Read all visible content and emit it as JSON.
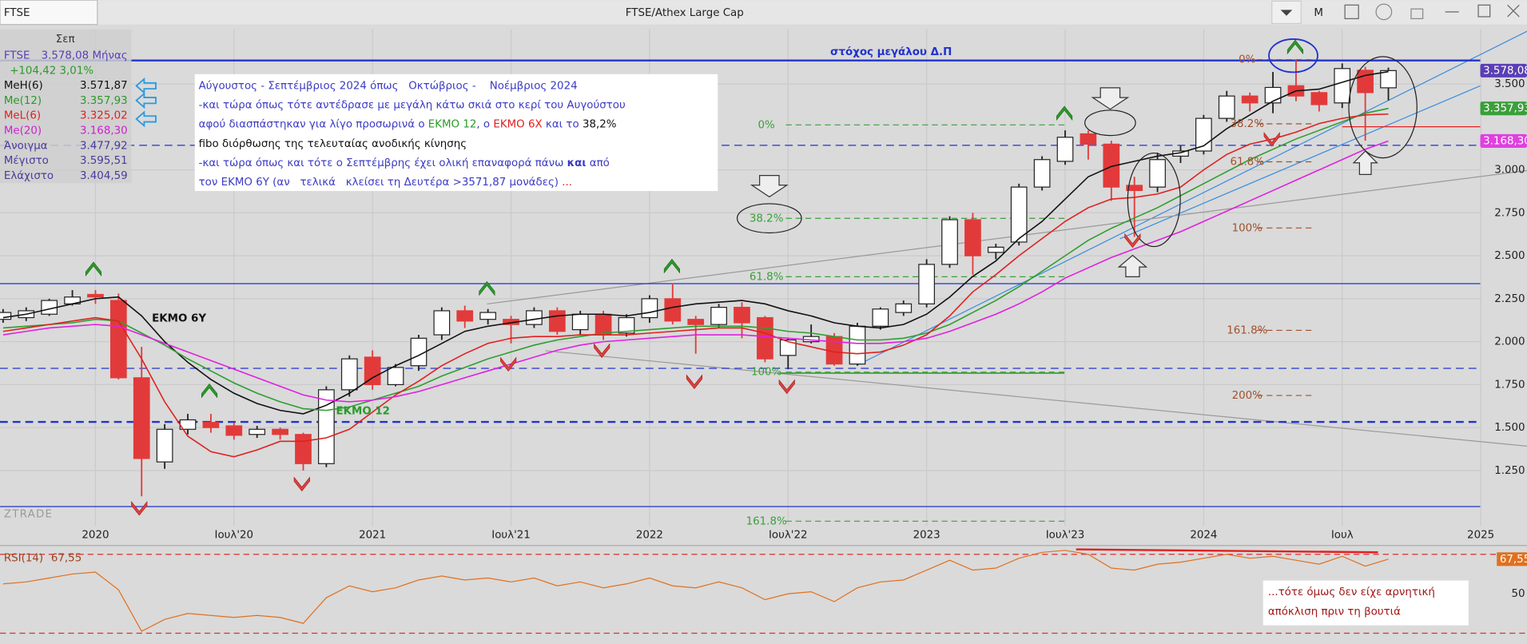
{
  "header": {
    "symbol": "FTSE",
    "title": "FTSE/Athex Large Cap",
    "mode": "M"
  },
  "info_panel": {
    "month": "Σεπ",
    "rows": [
      {
        "cells": [
          "FTSE",
          "3.578,08 Μήνας"
        ],
        "color": "#5a3fb5"
      },
      {
        "cells": [
          "+104,42 3,01%"
        ],
        "color": "#2a9a2a"
      },
      {
        "cells": [
          "MeH(6)",
          "3.571,87"
        ],
        "color": "#111111"
      },
      {
        "cells": [
          "Me(12)",
          "3.357,93"
        ],
        "color": "#2a9a2a"
      },
      {
        "cells": [
          "MeL(6)",
          "3.325,02"
        ],
        "color": "#e02020"
      },
      {
        "cells": [
          "Me(20)",
          "3.168,30"
        ],
        "color": "#d020d0"
      },
      {
        "cells": [
          "Άνοιγμα",
          "3.477,92"
        ],
        "color": "#4b3a9a"
      },
      {
        "cells": [
          "Μέγιστο",
          "3.595,51"
        ],
        "color": "#4b3a9a"
      },
      {
        "cells": [
          "Ελάχιστο",
          "3.404,59"
        ],
        "color": "#4b3a9a"
      }
    ]
  },
  "chart_data": [
    {
      "type": "candlestick",
      "annotations": [
        "στόχος μεγάλου Δ.Π",
        "ΕΚΜΟ 6Υ",
        "ΕΚΜΟ 12",
        "ZTRADE"
      ],
      "note": [
        [
          {
            "text": "Αύγουστος - Σεπτέμβριος 2024 όπως   Οκτώβριος -    Νοέμβριος 2024",
            "color": "#3b3bc4"
          }
        ],
        [
          {
            "text": "-και τώρα όπως τότε αντέδρασε με μεγάλη κάτω σκιά στο κερί του Αυγούστου",
            "color": "#3b3bc4"
          }
        ],
        [
          {
            "text": "αφού διασπάστηκαν για λίγο προσωρινά ο ",
            "color": "#3b3bc4"
          },
          {
            "text": "ΕΚΜΟ 12",
            "color": "#2a9a2a"
          },
          {
            "text": ", ο ",
            "color": "#3b3bc4"
          },
          {
            "text": "ΕΚΜΟ 6Χ",
            "color": "#e02020"
          },
          {
            "text": " και το ",
            "color": "#3b3bc4"
          },
          {
            "text": "38,2%",
            "color": "#111111"
          }
        ],
        [
          {
            "text": "fibo διόρθωσης της τελευταίας ανοδικής κίνησης",
            "color": "#111111"
          }
        ],
        [
          {
            "text": "-και τώρα όπως και τότε ο Σεπτέμβρης έχει ολική επαναφορά πάνω ",
            "color": "#3b3bc4"
          },
          {
            "text": "και",
            "color": "#3b3bc4",
            "bold": true
          },
          {
            "text": " από",
            "color": "#3b3bc4"
          }
        ],
        [
          {
            "text": "τον ΕΚΜΟ 6Υ (αν   τελικά   κλείσει τη Δευτέρα >3571,87 μονάδες) ",
            "color": "#3b3bc4"
          },
          {
            "text": "...",
            "color": "#e02020"
          }
        ]
      ],
      "x": [
        2019.6667,
        2019.75,
        2019.8333,
        2019.9167,
        2020,
        2020.0833,
        2020.1667,
        2020.25,
        2020.3333,
        2020.4167,
        2020.5,
        2020.5833,
        2020.6667,
        2020.75,
        2020.8333,
        2020.9167,
        2021,
        2021.0833,
        2021.1667,
        2021.25,
        2021.3333,
        2021.4167,
        2021.5,
        2021.5833,
        2021.6667,
        2021.75,
        2021.8333,
        2021.9167,
        2022,
        2022.0833,
        2022.1667,
        2022.25,
        2022.3333,
        2022.4167,
        2022.5,
        2022.5833,
        2022.6667,
        2022.75,
        2022.8333,
        2022.9167,
        2023,
        2023.0833,
        2023.1667,
        2023.25,
        2023.3333,
        2023.4167,
        2023.5,
        2023.5833,
        2023.6667,
        2023.75,
        2023.8333,
        2023.9167,
        2024,
        2024.0833,
        2024.1667,
        2024.25,
        2024.3333,
        2024.4167,
        2024.5,
        2024.5833,
        2024.6667
      ],
      "open": [
        2130,
        2140,
        2160,
        2220,
        2275,
        2240,
        1790,
        1300,
        1490,
        1530,
        1510,
        1460,
        1490,
        1460,
        1290,
        1720,
        1910,
        1750,
        1860,
        2040,
        2180,
        2130,
        2130,
        2100,
        2180,
        2070,
        2160,
        2050,
        2140,
        2250,
        2130,
        2100,
        2200,
        2140,
        1920,
        2000,
        2030,
        1870,
        2090,
        2170,
        2220,
        2450,
        2710,
        2520,
        2580,
        2900,
        3050,
        3210,
        3150,
        2910,
        2900,
        3080,
        3110,
        3300,
        3430,
        3390,
        3490,
        3450,
        3390,
        3580,
        3477.92
      ],
      "high": [
        2190,
        2200,
        2250,
        2300,
        2300,
        2280,
        1970,
        1520,
        1580,
        1580,
        1530,
        1510,
        1500,
        1470,
        1740,
        1920,
        1950,
        1870,
        2040,
        2200,
        2210,
        2190,
        2150,
        2200,
        2200,
        2180,
        2180,
        2160,
        2270,
        2340,
        2150,
        2220,
        2230,
        2150,
        2020,
        2100,
        2050,
        2110,
        2200,
        2240,
        2480,
        2730,
        2750,
        2570,
        2920,
        3080,
        3230,
        3230,
        3170,
        2960,
        3100,
        3140,
        3320,
        3460,
        3450,
        3570,
        3640,
        3460,
        3620,
        3600,
        3595.51
      ],
      "low": [
        2110,
        2120,
        2150,
        2210,
        2220,
        1780,
        1100,
        1260,
        1460,
        1470,
        1430,
        1440,
        1430,
        1250,
        1270,
        1680,
        1720,
        1740,
        1830,
        2010,
        2080,
        2100,
        1990,
        2080,
        2040,
        2040,
        2010,
        2030,
        2110,
        2100,
        1930,
        2080,
        2020,
        1880,
        1840,
        1990,
        1860,
        1860,
        2070,
        2150,
        2200,
        2430,
        2390,
        2480,
        2560,
        2880,
        3030,
        3060,
        2820,
        2610,
        2870,
        3040,
        3090,
        3280,
        3340,
        3330,
        3400,
        3340,
        3360,
        3170,
        3404.59
      ],
      "close": [
        2170,
        2180,
        2240,
        2260,
        2260,
        1790,
        1320,
        1490,
        1545,
        1500,
        1455,
        1490,
        1460,
        1290,
        1720,
        1900,
        1750,
        1850,
        2020,
        2180,
        2120,
        2170,
        2100,
        2180,
        2060,
        2160,
        2040,
        2140,
        2250,
        2120,
        2100,
        2200,
        2110,
        1900,
        2010,
        2030,
        1870,
        2090,
        2190,
        2220,
        2450,
        2710,
        2500,
        2550,
        2900,
        3060,
        3190,
        3150,
        2900,
        2880,
        3060,
        3110,
        3300,
        3430,
        3390,
        3480,
        3430,
        3380,
        3590,
        3450,
        3578.08
      ],
      "up_color": "#ffffff",
      "down_color": "#e23a3a",
      "series": [
        {
          "name": "MeH(6)",
          "color": "#111111",
          "values": [
            2140,
            2160,
            2190,
            2220,
            2250,
            2260,
            2150,
            2000,
            1880,
            1780,
            1700,
            1640,
            1600,
            1580,
            1630,
            1700,
            1790,
            1860,
            1920,
            1990,
            2060,
            2090,
            2110,
            2130,
            2150,
            2160,
            2160,
            2150,
            2170,
            2200,
            2220,
            2230,
            2240,
            2220,
            2180,
            2150,
            2110,
            2090,
            2080,
            2100,
            2160,
            2260,
            2380,
            2470,
            2600,
            2700,
            2830,
            2960,
            3020,
            3050,
            3080,
            3100,
            3140,
            3240,
            3320,
            3400,
            3460,
            3470,
            3510,
            3550,
            3571.87
          ]
        },
        {
          "name": "Me(12)",
          "color": "#2e9e2e",
          "values": [
            2080,
            2090,
            2100,
            2110,
            2130,
            2120,
            2050,
            1980,
            1900,
            1830,
            1760,
            1700,
            1650,
            1610,
            1600,
            1620,
            1660,
            1700,
            1740,
            1800,
            1850,
            1900,
            1940,
            1980,
            2010,
            2030,
            2050,
            2060,
            2070,
            2080,
            2090,
            2090,
            2090,
            2080,
            2060,
            2050,
            2030,
            2010,
            2010,
            2020,
            2050,
            2100,
            2170,
            2240,
            2320,
            2410,
            2500,
            2590,
            2660,
            2720,
            2780,
            2850,
            2920,
            2990,
            3060,
            3120,
            3180,
            3230,
            3280,
            3330,
            3357.93
          ]
        },
        {
          "name": "MeL(6)",
          "color": "#e02020",
          "values": [
            2060,
            2080,
            2100,
            2120,
            2140,
            2120,
            1900,
            1650,
            1450,
            1360,
            1330,
            1370,
            1420,
            1420,
            1440,
            1490,
            1590,
            1690,
            1770,
            1860,
            1930,
            1990,
            2020,
            2030,
            2030,
            2040,
            2040,
            2040,
            2050,
            2060,
            2070,
            2080,
            2080,
            2050,
            2000,
            1970,
            1940,
            1930,
            1940,
            1980,
            2040,
            2150,
            2290,
            2390,
            2500,
            2600,
            2700,
            2780,
            2830,
            2840,
            2860,
            2900,
            3000,
            3090,
            3150,
            3180,
            3220,
            3270,
            3300,
            3320,
            3325.02
          ]
        },
        {
          "name": "Me(20)",
          "color": "#e020e0",
          "values": [
            2040,
            2060,
            2080,
            2090,
            2100,
            2090,
            2040,
            1990,
            1940,
            1890,
            1840,
            1790,
            1740,
            1690,
            1660,
            1650,
            1660,
            1680,
            1710,
            1750,
            1790,
            1830,
            1870,
            1910,
            1950,
            1980,
            2000,
            2010,
            2020,
            2030,
            2040,
            2040,
            2040,
            2030,
            2020,
            2010,
            2000,
            1990,
            1990,
            2000,
            2020,
            2060,
            2110,
            2160,
            2220,
            2290,
            2370,
            2430,
            2490,
            2540,
            2590,
            2640,
            2700,
            2760,
            2820,
            2880,
            2940,
            3000,
            3060,
            3120,
            3168.3
          ]
        }
      ],
      "levels": [
        {
          "value": 3637,
          "color": "#2233cc",
          "dash": false,
          "width": 2
        },
        {
          "value": 3143,
          "color": "#2233cc",
          "dash": true,
          "width": 1
        },
        {
          "value": 2338,
          "color": "#2233cc",
          "dash": false,
          "width": 1
        },
        {
          "value": 1845,
          "color": "#2233cc",
          "dash": true,
          "width": 1
        },
        {
          "value": 1533,
          "color": "#2233cc",
          "dash": true,
          "width": 2
        },
        {
          "value": 1040,
          "color": "#2233cc",
          "dash": false,
          "width": 1
        },
        {
          "value": 3251,
          "color": "#e02020",
          "dash": false,
          "width": 1,
          "start": 2024.5
        }
      ],
      "fibs": [
        {
          "start": 2022.0,
          "end": 2023.5,
          "color": "#3aa03a",
          "levels": [
            {
              "value": 3262,
              "label": "0%"
            },
            {
              "value": 2718,
              "label": "38.2%"
            },
            {
              "value": 2378,
              "label": "61.8%"
            },
            {
              "value": 1823,
              "label": "100%"
            },
            {
              "value": 955,
              "label": "161.8%"
            }
          ]
        },
        {
          "start": 2023.7,
          "end": 2024.4,
          "color": "#a0522d",
          "levels": [
            {
              "value": 3642,
              "label": "0%"
            },
            {
              "value": 3268,
              "label": "38.2%"
            },
            {
              "value": 3047,
              "label": "61.8%"
            },
            {
              "value": 2662,
              "label": "100%"
            },
            {
              "value": 2066,
              "label": "161.8%"
            },
            {
              "value": 1687,
              "label": "200%"
            }
          ]
        }
      ],
      "price_tags": [
        {
          "value": 3578.08,
          "label": "3.578,08",
          "color": "#5a3fb5"
        },
        {
          "value": 3357.93,
          "label": "3.357,93",
          "color": "#3aa03a"
        },
        {
          "value": 3168.3,
          "label": "3.168,30",
          "color": "#e040e0"
        }
      ],
      "xlim": [
        2019.6555,
        2025.167
      ],
      "ylim": [
        927,
        3818
      ],
      "xticks": [
        {
          "value": 2020,
          "label": "2020"
        },
        {
          "value": 2020.5,
          "label": "Ιουλ'20"
        },
        {
          "value": 2021,
          "label": "2021"
        },
        {
          "value": 2021.5,
          "label": "Ιουλ'21"
        },
        {
          "value": 2022,
          "label": "2022"
        },
        {
          "value": 2022.5,
          "label": "Ιουλ'22"
        },
        {
          "value": 2023,
          "label": "2023"
        },
        {
          "value": 2023.5,
          "label": "Ιουλ'23"
        },
        {
          "value": 2024,
          "label": "2024"
        },
        {
          "value": 2024.5,
          "label": "Ιουλ"
        },
        {
          "value": 2025,
          "label": "2025"
        }
      ],
      "yticks": [
        {
          "value": 1250,
          "label": "1.250"
        },
        {
          "value": 1500,
          "label": "1.500"
        },
        {
          "value": 1750,
          "label": "1.750"
        },
        {
          "value": 2000,
          "label": "2.000"
        },
        {
          "value": 2250,
          "label": "2.250"
        },
        {
          "value": 2500,
          "label": "2.500"
        },
        {
          "value": 2750,
          "label": "2.750"
        },
        {
          "value": 3000,
          "label": "3.000"
        },
        {
          "value": 3500,
          "label": "3.500"
        }
      ],
      "grid": true
    },
    {
      "type": "line",
      "title": "RSI(14)",
      "color": "#e07020",
      "note": [
        "...τότε όμως δεν είχε αρνητική",
        "απόκλιση πριν τη βουτιά"
      ],
      "values": [
        55,
        56,
        58,
        60,
        61,
        52,
        31,
        37,
        40,
        39,
        38,
        39,
        38,
        35,
        48,
        54,
        51,
        53,
        57,
        59,
        57,
        58,
        56,
        58,
        54,
        56,
        53,
        55,
        58,
        54,
        53,
        56,
        53,
        47,
        50,
        51,
        46,
        53,
        56,
        57,
        62,
        67,
        62,
        63,
        68,
        71,
        72,
        70,
        63,
        62,
        65,
        66,
        68,
        70,
        68,
        69,
        67,
        65,
        69,
        64,
        67.55
      ],
      "value_labels": [
        null,
        null,
        null,
        null,
        null,
        null,
        null,
        null,
        null,
        null,
        null,
        null,
        null,
        null,
        null,
        null,
        null,
        null,
        null,
        null,
        null,
        null,
        null,
        null,
        null,
        null,
        null,
        null,
        null,
        null,
        null,
        null,
        null,
        null,
        null,
        null,
        null,
        null,
        null,
        null,
        null,
        null,
        null,
        null,
        null,
        null,
        null,
        null,
        null,
        null,
        null,
        null,
        null,
        null,
        null,
        null,
        null,
        null,
        null,
        null,
        "67,55"
      ],
      "levels": [
        {
          "value": 70,
          "color": "#e03030"
        },
        {
          "value": 30,
          "color": "#e03030"
        }
      ],
      "ylim": [
        24.6,
        73
      ],
      "yticks": [
        50
      ]
    }
  ]
}
